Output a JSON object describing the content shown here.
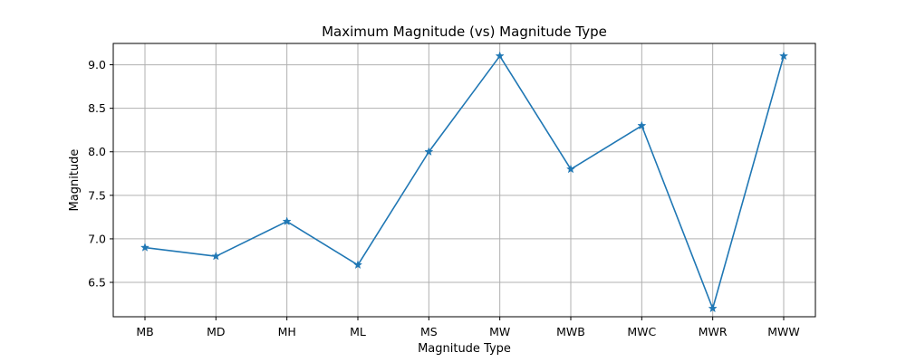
{
  "chart_data": {
    "type": "line",
    "title": "Maximum Magnitude (vs) Magnitude Type",
    "xlabel": "Magnitude Type",
    "ylabel": "Magnitude",
    "categories": [
      "MB",
      "MD",
      "MH",
      "ML",
      "MS",
      "MW",
      "MWB",
      "MWC",
      "MWR",
      "MWW"
    ],
    "values": [
      6.9,
      6.8,
      7.2,
      6.7,
      8.0,
      9.1,
      7.8,
      8.3,
      6.2,
      9.1
    ],
    "yticks": [
      "6.5",
      "7.0",
      "7.5",
      "8.0",
      "8.5",
      "9.0"
    ],
    "ylim": [
      6.105,
      9.245
    ],
    "grid": true,
    "marker": "star",
    "color": "#1f77b4"
  }
}
